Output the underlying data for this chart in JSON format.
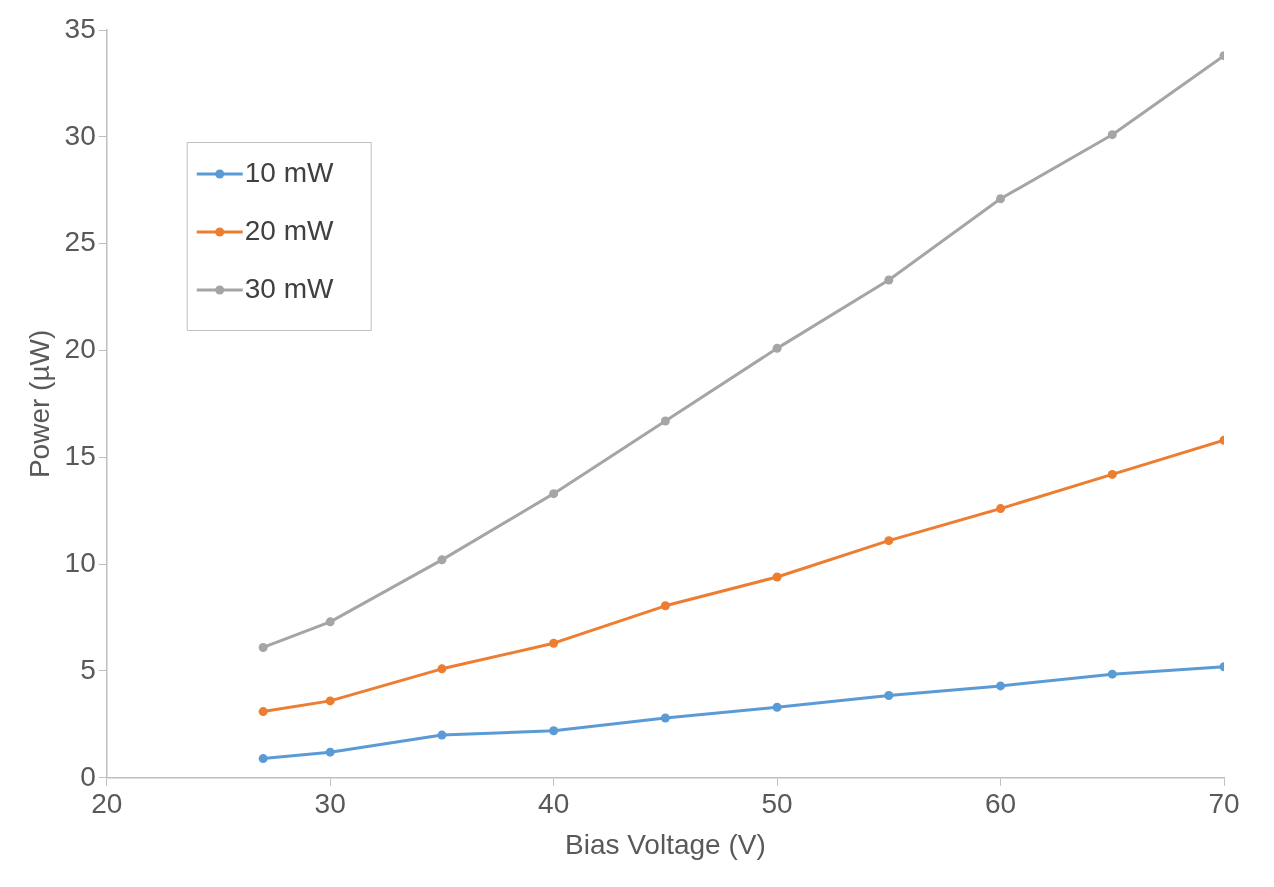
{
  "chart_data": {
    "type": "line",
    "xlabel": "Bias Voltage (V)",
    "ylabel": "Power (µW)",
    "x": [
      27,
      30,
      35,
      40,
      45,
      50,
      55,
      60,
      65,
      70
    ],
    "series": [
      {
        "name": "10 mW",
        "color": "#5b9bd5",
        "values": [
          0.9,
          1.2,
          2.0,
          2.2,
          2.8,
          3.3,
          3.85,
          4.3,
          4.85,
          5.2
        ]
      },
      {
        "name": "20 mW",
        "color": "#ed7d31",
        "values": [
          3.1,
          3.6,
          5.1,
          6.3,
          8.05,
          9.4,
          11.1,
          12.6,
          14.2,
          15.8
        ]
      },
      {
        "name": "30 mW",
        "color": "#a5a5a5",
        "values": [
          6.1,
          7.3,
          10.2,
          13.3,
          16.7,
          20.1,
          23.3,
          27.1,
          30.1,
          33.8
        ]
      }
    ],
    "xlim": [
      20,
      70
    ],
    "xticks": [
      20,
      30,
      40,
      50,
      60,
      70
    ],
    "ylim": [
      0,
      35
    ],
    "yticks": [
      0,
      5,
      10,
      15,
      20,
      25,
      30,
      35
    ],
    "grid": false,
    "legend": "top left",
    "marker": "circle",
    "line_style": "solid"
  }
}
